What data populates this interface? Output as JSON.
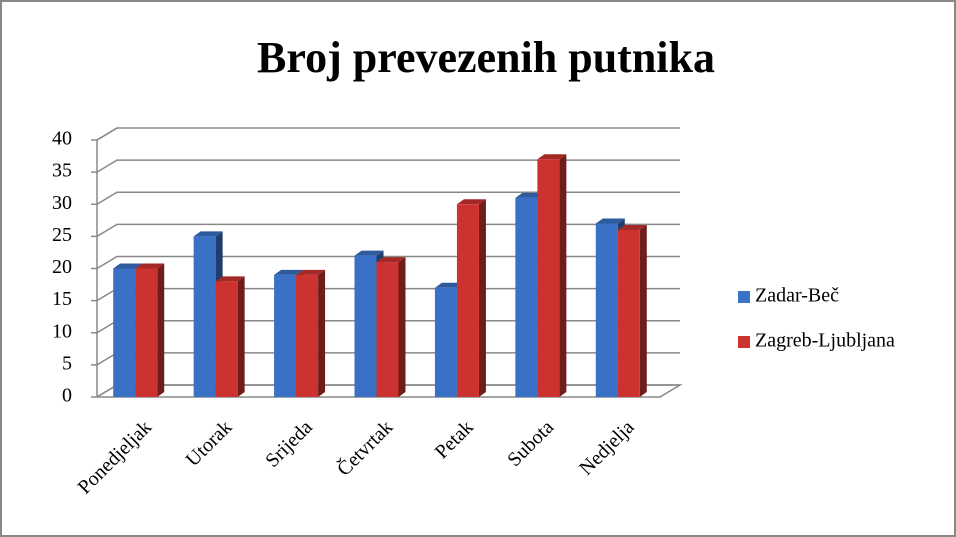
{
  "chart_data": {
    "type": "bar3d",
    "title": "Broj prevezenih putnika",
    "categories": [
      "Ponedjeljak",
      "Utorak",
      "Srijeda",
      "Četvrtak",
      "Petak",
      "Subota",
      "Nedjelja"
    ],
    "series": [
      {
        "name": "Zadar-Beč",
        "color": "#3a70c6",
        "values": [
          20,
          25,
          19,
          22,
          17,
          31,
          27
        ]
      },
      {
        "name": "Zagreb-Ljubljana",
        "color": "#cc3330",
        "values": [
          20,
          18,
          19,
          21,
          30,
          37,
          26
        ]
      }
    ],
    "ylim": [
      0,
      40
    ],
    "yticks": [
      0,
      5,
      10,
      15,
      20,
      25,
      30,
      35,
      40
    ],
    "grid": true,
    "legend": "right"
  }
}
